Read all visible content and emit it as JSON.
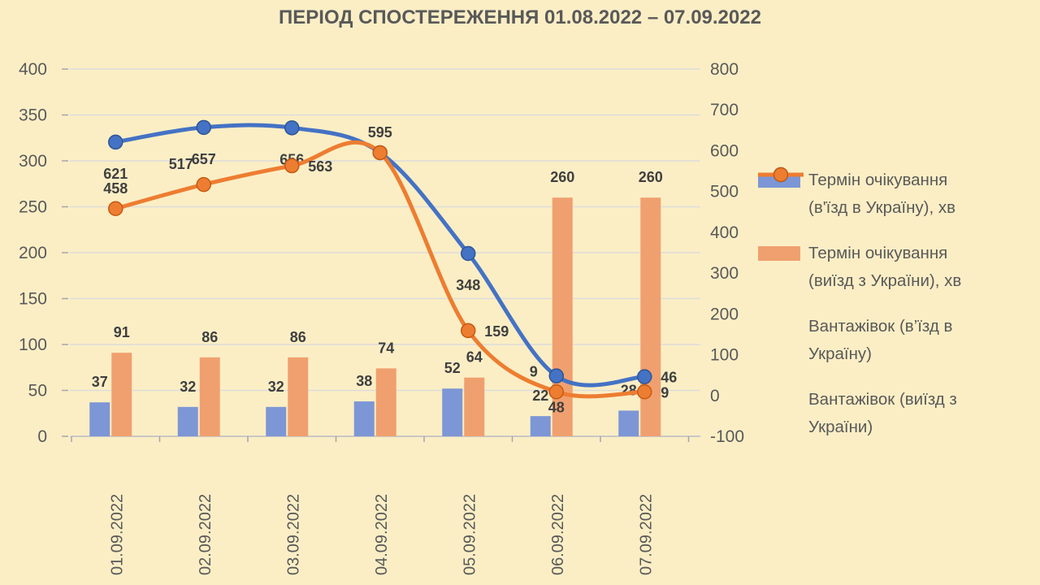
{
  "title": "ПЕРІОД СПОСТЕРЕЖЕННЯ 01.08.2022 – 07.09.2022",
  "colors": {
    "background": "#FBEEC5",
    "axis_text": "#595959",
    "data_label_text": "#3F3F3F",
    "gridline": "#DCDCDC",
    "axis_line": "#BFBFBF",
    "tick_mark": "#A6A6A6",
    "bar_blue": "#7D96D5",
    "bar_orange": "#F0A06F",
    "line_blue": "#4472C4",
    "line_blue_stroke": "#2E5596",
    "line_orange": "#ED7D31",
    "line_orange_stroke": "#C55A11"
  },
  "legend": {
    "position": "right",
    "items": [
      {
        "swatch": "bar",
        "color": "#7D96D5",
        "label": "Термін очікування (в'їзд в Україну), хв",
        "lines": [
          "Термін очікування",
          "(в'їзд в Україну), хв"
        ]
      },
      {
        "swatch": "bar",
        "color": "#F0A06F",
        "label": "Термін очікування (виїзд з України), хв",
        "lines": [
          "Термін очікування",
          "(виїзд з України), хв"
        ]
      },
      {
        "swatch": "line",
        "color": "#4472C4",
        "label": "Вантажівок (в’їзд в Україну)",
        "lines": [
          "Вантажівок (в’їзд в",
          "Україну)"
        ]
      },
      {
        "swatch": "line",
        "color": "#ED7D31",
        "label": "Вантажівок (виїзд з України)",
        "lines": [
          "Вантажівок (виїзд з",
          "України)"
        ]
      }
    ]
  },
  "chart_data": {
    "type": "combo-bar-line",
    "title": "ПЕРІОД СПОСТЕРЕЖЕННЯ 01.08.2022 – 07.09.2022",
    "categories": [
      "01.09.2022",
      "02.09.2022",
      "03.09.2022",
      "04.09.2022",
      "05.09.2022",
      "06.09.2022",
      "07.09.2022"
    ],
    "left_axis": {
      "min": 0,
      "max": 400,
      "step": 50,
      "ticks": [
        400,
        350,
        300,
        250,
        200,
        150,
        100,
        50,
        0
      ]
    },
    "right_axis": {
      "min": -100,
      "max": 800,
      "step": 100,
      "ticks": [
        800,
        700,
        600,
        500,
        400,
        300,
        200,
        100,
        0,
        -100
      ]
    },
    "grid": true,
    "smoothed_lines": true,
    "legend_position": "right",
    "series": [
      {
        "name": "Термін очікування (в'їзд в Україну), хв",
        "type": "bar",
        "axis": "left",
        "color": "#7D96D5",
        "values": [
          37,
          32,
          32,
          38,
          52,
          22,
          28
        ]
      },
      {
        "name": "Термін очікування (виїзд з України), хв",
        "type": "bar",
        "axis": "left",
        "color": "#F0A06F",
        "values": [
          91,
          86,
          86,
          74,
          64,
          260,
          260
        ]
      },
      {
        "name": "Вантажівок (в’їзд в Україну)",
        "type": "line",
        "axis": "right",
        "color": "#4472C4",
        "marker_stroke": "#2E5596",
        "values": [
          621,
          657,
          656,
          595,
          348,
          48,
          46
        ],
        "label_pos": [
          "below",
          "below",
          "below",
          "hidden",
          "below",
          "below",
          "right"
        ]
      },
      {
        "name": "Вантажівок (виїзд з України)",
        "type": "line",
        "axis": "right",
        "color": "#ED7D31",
        "marker_stroke": "#C55A11",
        "values": [
          458,
          517,
          563,
          595,
          159,
          9,
          9
        ],
        "label_pos": [
          "above",
          "above-left",
          "right",
          "above",
          "right",
          "above-left",
          "right"
        ]
      }
    ]
  }
}
